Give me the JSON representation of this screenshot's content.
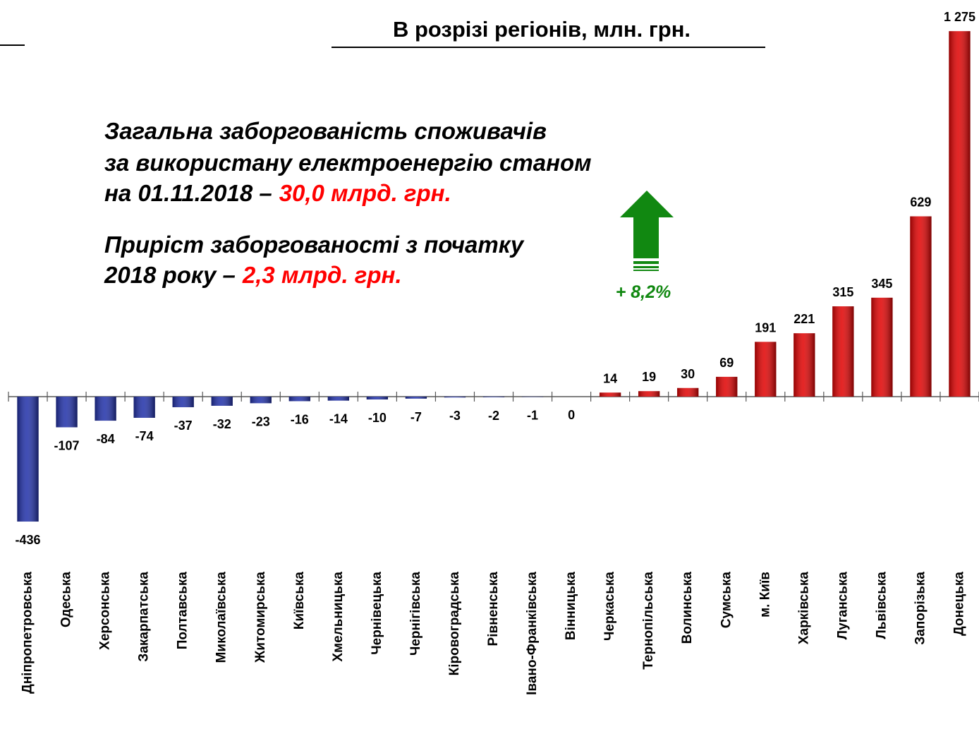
{
  "chart_data": {
    "type": "bar",
    "title": "В розрізі регіонів, млн. грн.",
    "categories": [
      "Дніпропетровська",
      "Одеська",
      "Херсонська",
      "Закарпатська",
      "Полтавська",
      "Миколаївська",
      "Житомирська",
      "Київська",
      "Хмельницька",
      "Чернівецька",
      "Чернігівська",
      "Кіровоградська",
      "Рівненська",
      "Івано-Франківська",
      "Вінницька",
      "Черкаська",
      "Тернопільська",
      "Волинська",
      "Сумська",
      "м. Київ",
      "Харківська",
      "Луганська",
      "Львівська",
      "Запорізька",
      "Донецька"
    ],
    "values": [
      -436,
      -107,
      -84,
      -74,
      -37,
      -32,
      -23,
      -16,
      -14,
      -10,
      -7,
      -3,
      -2,
      -1,
      0,
      14,
      19,
      30,
      69,
      191,
      221,
      315,
      345,
      629,
      1275
    ],
    "value_labels": [
      "-436",
      "-107",
      "-84",
      "-74",
      "-37",
      "-32",
      "-23",
      "-16",
      "-14",
      "-10",
      "-7",
      "-3",
      "-2",
      "-1",
      "0",
      "14",
      "19",
      "30",
      "69",
      "191",
      "221",
      "315",
      "345",
      "629",
      "1 275"
    ],
    "color": "#e00000",
    "negative_color": "#1f2fa8",
    "ylim": [
      -500,
      1300
    ],
    "annotations": {
      "debt": {
        "lines": [
          "Загальна заборгованість споживачів",
          "за використану електроенергію станом",
          "на 01.11.2018 –"
        ],
        "highlight": "30,0 млрд. грн."
      },
      "growth": {
        "lines": [
          "Приріст заборгованості з початку",
          "2018 року –"
        ],
        "highlight": "2,3 млрд. грн."
      },
      "change": "+ 8,2%"
    }
  }
}
